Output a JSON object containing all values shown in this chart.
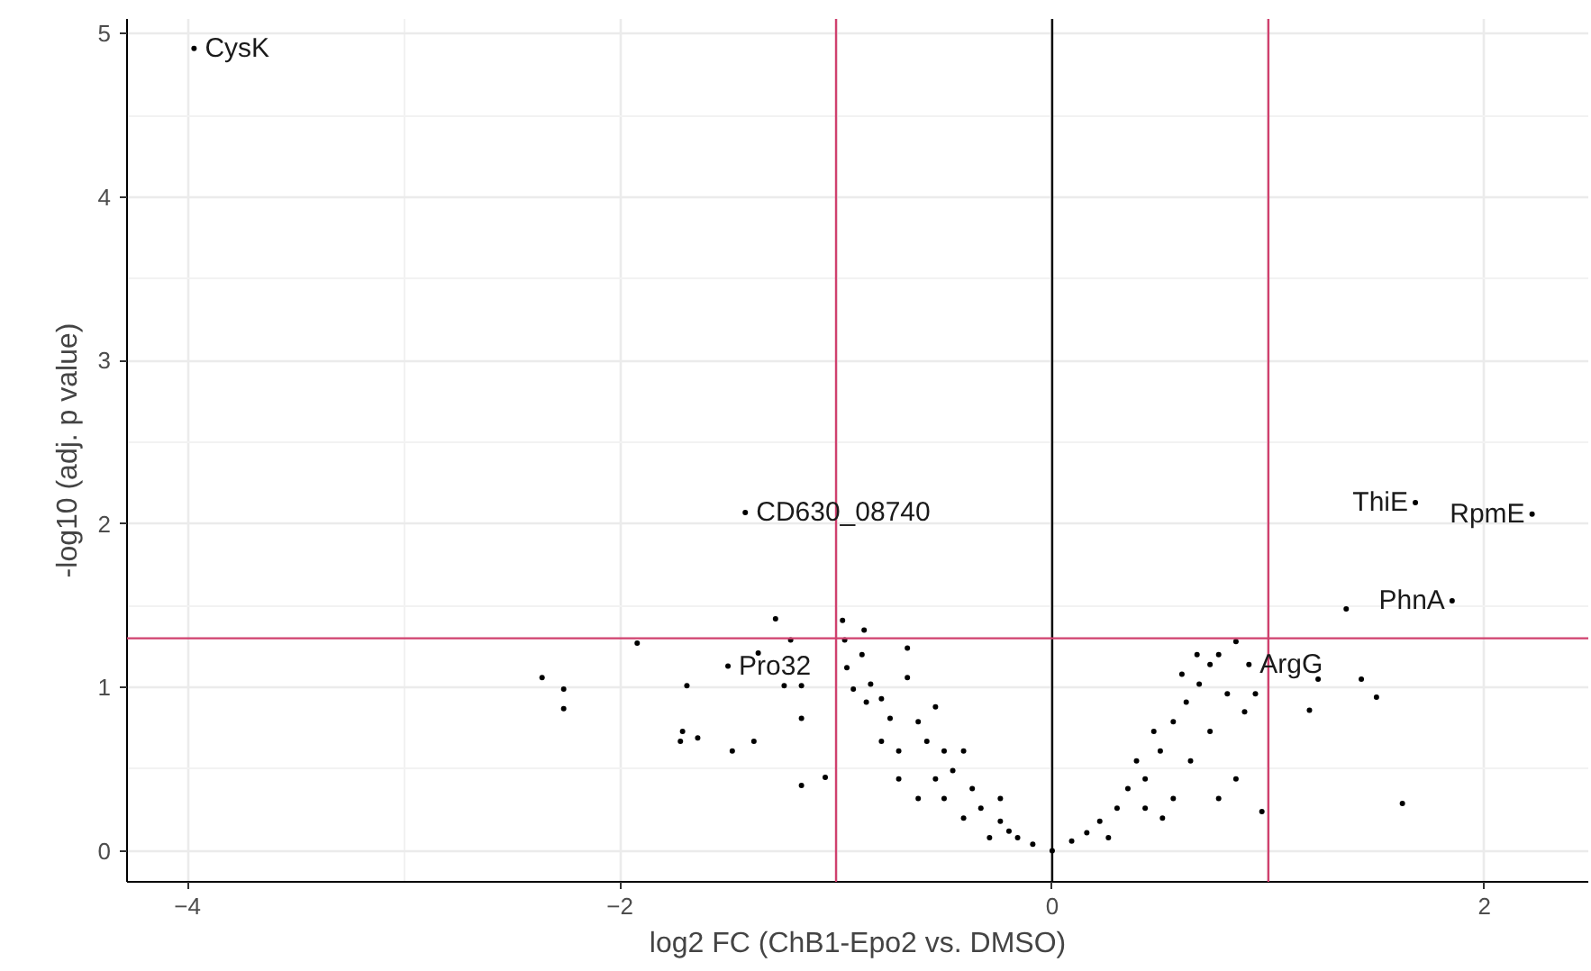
{
  "chart_data": {
    "type": "scatter",
    "xlabel": "log2 FC (ChB1-Epo2 vs. DMSO)",
    "ylabel": "-log10 (adj. p value)",
    "xlim": [
      -4.28,
      2.48
    ],
    "ylim": [
      -0.19,
      5.09
    ],
    "xticks": [
      -4,
      -2,
      0,
      2
    ],
    "yticks": [
      0,
      1,
      2,
      3,
      4,
      5
    ],
    "grid": true,
    "marker": "circle",
    "series": [
      {
        "color": "#000000",
        "x": [
          -3.97,
          -1.42,
          1.68,
          2.22,
          1.85,
          1.36,
          0.91,
          1.43,
          1.23,
          1.5,
          1.19,
          1.62,
          0.97,
          -2.36,
          -2.26,
          -2.26,
          -1.92,
          -1.69,
          -1.71,
          -1.72,
          -1.64,
          -1.48,
          -1.38,
          -1.16,
          -1.05,
          -1.28,
          -1.21,
          -1.16,
          -1.16,
          -1.36,
          -1.24,
          -0.97,
          -1.5,
          -0.96,
          -0.88,
          -0.84,
          -0.92,
          -0.79,
          -0.67,
          -0.75,
          -0.62,
          -0.58,
          -0.71,
          -0.5,
          -0.46,
          -0.54,
          -0.37,
          -0.33,
          -0.5,
          -0.24,
          -0.16,
          -0.09,
          -0.41,
          -0.29,
          -0.2,
          -0.62,
          -0.71,
          -0.79,
          -0.86,
          -0.95,
          -0.87,
          -0.67,
          -0.54,
          -0.41,
          -0.24,
          0,
          0.09,
          0.16,
          0.22,
          0.3,
          0.35,
          0.43,
          0.39,
          0.5,
          0.56,
          0.47,
          0.62,
          0.68,
          0.6,
          0.73,
          0.67,
          0.77,
          0.81,
          0.73,
          0.64,
          0.56,
          0.77,
          0.85,
          0.43,
          0.26,
          0.51,
          0.89,
          0.94,
          0.85
        ],
        "values": [
          4.91,
          2.07,
          2.13,
          2.06,
          1.53,
          1.48,
          1.14,
          1.05,
          1.05,
          0.94,
          0.86,
          0.29,
          0.24,
          1.06,
          0.99,
          0.87,
          1.27,
          1.01,
          0.73,
          0.67,
          0.69,
          0.61,
          0.67,
          0.4,
          0.45,
          1.42,
          1.29,
          1.01,
          0.81,
          1.21,
          1.01,
          1.41,
          1.13,
          1.29,
          1.2,
          1.02,
          0.99,
          0.93,
          1.06,
          0.81,
          0.79,
          0.67,
          0.61,
          0.61,
          0.49,
          0.44,
          0.38,
          0.26,
          0.32,
          0.18,
          0.08,
          0.04,
          0.2,
          0.08,
          0.12,
          0.32,
          0.44,
          0.67,
          0.91,
          1.12,
          1.35,
          1.24,
          0.88,
          0.61,
          0.32,
          0,
          0.06,
          0.11,
          0.18,
          0.26,
          0.38,
          0.44,
          0.55,
          0.61,
          0.79,
          0.73,
          0.91,
          1.02,
          1.08,
          1.14,
          1.2,
          1.2,
          0.96,
          0.73,
          0.55,
          0.32,
          0.32,
          0.44,
          0.26,
          0.08,
          0.2,
          0.85,
          0.96,
          1.28
        ]
      }
    ],
    "ref_lines": [
      {
        "axis": "x",
        "value": 0,
        "color": "#000000"
      },
      {
        "axis": "x",
        "value": -1,
        "color": "#d0406e"
      },
      {
        "axis": "x",
        "value": 1,
        "color": "#d0406e"
      },
      {
        "axis": "y",
        "value": 1.3,
        "color": "#d0406e"
      }
    ],
    "annotations": [
      {
        "text": "CysK",
        "x": -3.97,
        "y": 4.91
      },
      {
        "text": "CD630_08740",
        "x": -1.42,
        "y": 2.07
      },
      {
        "text": "ThiE",
        "x": 1.68,
        "y": 2.13
      },
      {
        "text": "RpmE",
        "x": 2.22,
        "y": 2.06
      },
      {
        "text": "PhnA",
        "x": 1.85,
        "y": 1.53
      },
      {
        "text": "Pro32",
        "x": -1.5,
        "y": 1.13
      },
      {
        "text": "ArgG",
        "x": 0.91,
        "y": 1.14
      }
    ]
  }
}
